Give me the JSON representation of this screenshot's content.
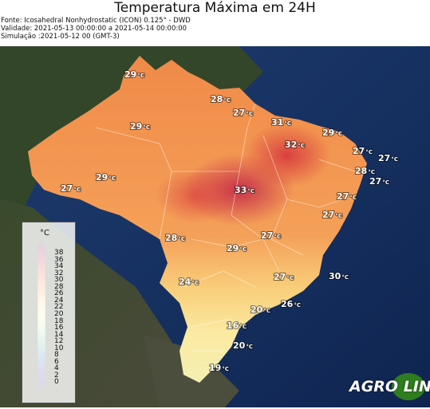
{
  "header": {
    "title": "Temperatura Máxima em 24H",
    "source": "Fonte: Icosahedral Nonhydrostatic (ICON) 0.125° - DWD",
    "validity": "Validade: 2021-05-13 00:00:00 a 2021-05-14 00:00:00",
    "simulation": "Simulação :2021-05-12 00 (GMT-3)"
  },
  "legend": {
    "unit": "°C",
    "ticks": [
      "38",
      "36",
      "34",
      "32",
      "30",
      "28",
      "26",
      "24",
      "22",
      "20",
      "18",
      "16",
      "14",
      "12",
      "10",
      "8",
      "6",
      "4",
      "2",
      "0"
    ],
    "colors": {
      "38": "#6b1040",
      "36": "#8e1a4e",
      "34": "#b8284f",
      "32": "#d73d3f",
      "30": "#ea5b3a",
      "28": "#f17c43",
      "26": "#f59a52",
      "24": "#f8b866",
      "22": "#fbd27f",
      "20": "#fce69a",
      "18": "#f6f2ad",
      "16": "#e4efb0",
      "14": "#c6e4ad",
      "12": "#9dd3a8",
      "10": "#72c0a6",
      "8": "#4aa7ac",
      "6": "#3587b0",
      "4": "#3a66a8",
      "2": "#47469b",
      "0": "#4a2c7e"
    }
  },
  "map_labels": [
    {
      "name": "label-29-roraima",
      "value": "29",
      "unit": "°C"
    },
    {
      "name": "label-28-amapa",
      "value": "28",
      "unit": "°C"
    },
    {
      "name": "label-27-para-coast",
      "value": "27",
      "unit": "°C"
    },
    {
      "name": "label-31-maranhao",
      "value": "31",
      "unit": "°C"
    },
    {
      "name": "label-29-ceara",
      "value": "29",
      "unit": "°C"
    },
    {
      "name": "label-29-amazonas",
      "value": "29",
      "unit": "°C"
    },
    {
      "name": "label-32-piaui",
      "value": "32",
      "unit": "°C"
    },
    {
      "name": "label-27-rn",
      "value": "27",
      "unit": "°C"
    },
    {
      "name": "label-27-atlantic",
      "value": "27",
      "unit": "°C"
    },
    {
      "name": "label-28-paraiba",
      "value": "28",
      "unit": "°C"
    },
    {
      "name": "label-27-pernambuco",
      "value": "27",
      "unit": "°C"
    },
    {
      "name": "label-29-west-amazonas",
      "value": "29",
      "unit": "°C"
    },
    {
      "name": "label-27-acre",
      "value": "27",
      "unit": "°C"
    },
    {
      "name": "label-33-tocantins",
      "value": "33",
      "unit": "°C"
    },
    {
      "name": "label-27-bahia-east",
      "value": "27",
      "unit": "°C"
    },
    {
      "name": "label-27-sergipe",
      "value": "27",
      "unit": "°C"
    },
    {
      "name": "label-28-mato-grosso",
      "value": "28",
      "unit": "°C"
    },
    {
      "name": "label-27-bahia-west",
      "value": "27",
      "unit": "°C"
    },
    {
      "name": "label-29-goias",
      "value": "29",
      "unit": "°C"
    },
    {
      "name": "label-24-ms",
      "value": "24",
      "unit": "°C"
    },
    {
      "name": "label-27-minas",
      "value": "27",
      "unit": "°C"
    },
    {
      "name": "label-30-ocean",
      "value": "30",
      "unit": "°C"
    },
    {
      "name": "label-20-sp",
      "value": "20",
      "unit": "°C"
    },
    {
      "name": "label-26-rj",
      "value": "26",
      "unit": "°C"
    },
    {
      "name": "label-16-parana",
      "value": "16",
      "unit": "°C"
    },
    {
      "name": "label-20-sc",
      "value": "20",
      "unit": "°C"
    },
    {
      "name": "label-19-rs",
      "value": "19",
      "unit": "°C"
    }
  ],
  "logo": {
    "text": "AGRO LINK"
  }
}
